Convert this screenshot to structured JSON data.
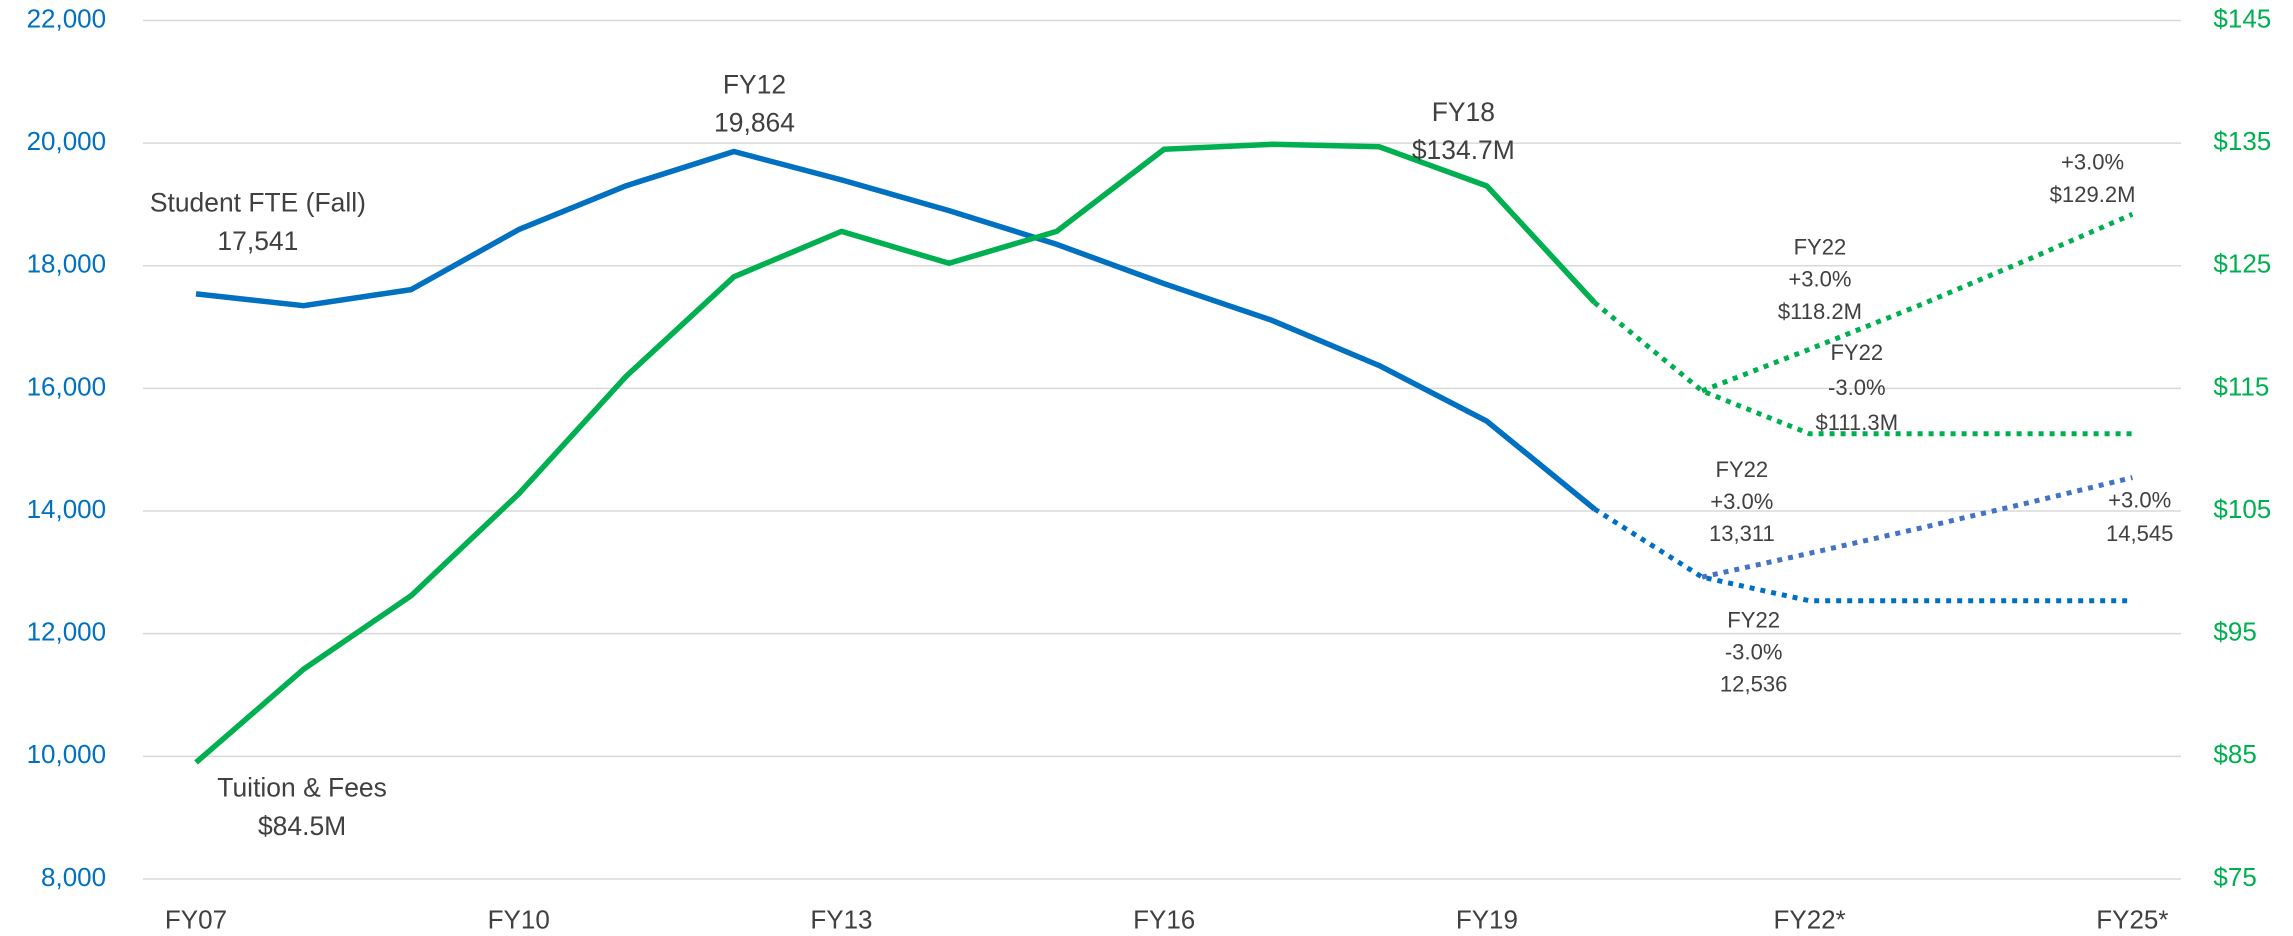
{
  "chart_data": {
    "type": "line",
    "categories": [
      "FY07",
      null,
      null,
      "FY10",
      null,
      null,
      "FY13",
      null,
      null,
      "FY16",
      null,
      null,
      "FY19",
      null,
      null,
      "FY22*",
      null,
      null,
      "FY25*"
    ],
    "series": [
      {
        "color": "#0070c0",
        "dash": false,
        "axis": "y",
        "values": [
          17541,
          17349,
          17611,
          18589,
          19305,
          19864,
          19400,
          18900,
          18350,
          17707,
          17110,
          16371,
          15465,
          14034,
          null,
          null,
          null,
          null,
          null
        ]
      },
      {
        "color": "#0070c0",
        "dash": true,
        "axis": "y",
        "values": [
          null,
          null,
          null,
          null,
          null,
          null,
          null,
          null,
          null,
          null,
          null,
          null,
          null,
          14034,
          12923,
          12536,
          12536,
          12536,
          12536
        ]
      },
      {
        "color": "#4472c4",
        "dash": true,
        "axis": "y",
        "values": [
          null,
          null,
          null,
          null,
          null,
          null,
          null,
          null,
          null,
          null,
          null,
          null,
          null,
          null,
          12923,
          13311,
          13710,
          14122,
          14545
        ]
      },
      {
        "color": "#00b050",
        "dash": false,
        "axis": "y2",
        "values": [
          84.5,
          92.1,
          98.1,
          106.4,
          116.0,
          124.1,
          127.8,
          125.2,
          127.8,
          134.5,
          134.9,
          134.7,
          131.5,
          122.0,
          null,
          null,
          null,
          null,
          null
        ]
      },
      {
        "color": "#00b050",
        "dash": true,
        "axis": "y2",
        "values": [
          null,
          null,
          null,
          null,
          null,
          null,
          null,
          null,
          null,
          null,
          null,
          null,
          null,
          122.0,
          114.8,
          111.3,
          111.3,
          111.3,
          111.3
        ]
      },
      {
        "color": "#00b050",
        "dash": true,
        "axis": "y2",
        "values": [
          null,
          null,
          null,
          null,
          null,
          null,
          null,
          null,
          null,
          null,
          null,
          null,
          null,
          null,
          114.8,
          118.2,
          121.7,
          125.4,
          129.2
        ]
      }
    ],
    "ylim": [
      8000,
      22000
    ],
    "yticks": [
      {
        "value": 8000,
        "label": "8,000"
      },
      {
        "value": 10000,
        "label": "10,000"
      },
      {
        "value": 12000,
        "label": "12,000"
      },
      {
        "value": 14000,
        "label": "14,000"
      },
      {
        "value": 16000,
        "label": "16,000"
      },
      {
        "value": 18000,
        "label": "18,000"
      },
      {
        "value": 20000,
        "label": "20,000"
      },
      {
        "value": 22000,
        "label": "22,000"
      }
    ],
    "y2lim": [
      75,
      145
    ],
    "y2ticks": [
      {
        "value": 75,
        "label": "$75"
      },
      {
        "value": 85,
        "label": "$85"
      },
      {
        "value": 95,
        "label": "$95"
      },
      {
        "value": 105,
        "label": "$105"
      },
      {
        "value": 115,
        "label": "$115"
      },
      {
        "value": 125,
        "label": "$125"
      },
      {
        "value": 135,
        "label": "$135"
      },
      {
        "value": 145,
        "label": "$145"
      }
    ],
    "ytick_color": "#0070c0",
    "y2tick_color": "#00b050",
    "grid": true,
    "annotations": [
      {
        "lines": [
          "Student FTE (Fall)",
          "17,541"
        ]
      },
      {
        "lines": [
          "FY12",
          "19,864"
        ]
      },
      {
        "lines": [
          "Tuition & Fees",
          "$84.5M"
        ]
      },
      {
        "lines": [
          "FY18",
          "$134.7M"
        ]
      },
      {
        "lines": [
          "FY22",
          "+3.0%",
          "$118.2M"
        ]
      },
      {
        "lines": [
          "FY22",
          "-3.0%",
          "$111.3M"
        ]
      },
      {
        "lines": [
          "+3.0%",
          "$129.2M"
        ]
      },
      {
        "lines": [
          "FY22",
          "+3.0%",
          "13,311"
        ]
      },
      {
        "lines": [
          "+3.0%",
          "14,545"
        ]
      },
      {
        "lines": [
          "FY22",
          "-3.0%",
          "12,536"
        ]
      }
    ]
  }
}
